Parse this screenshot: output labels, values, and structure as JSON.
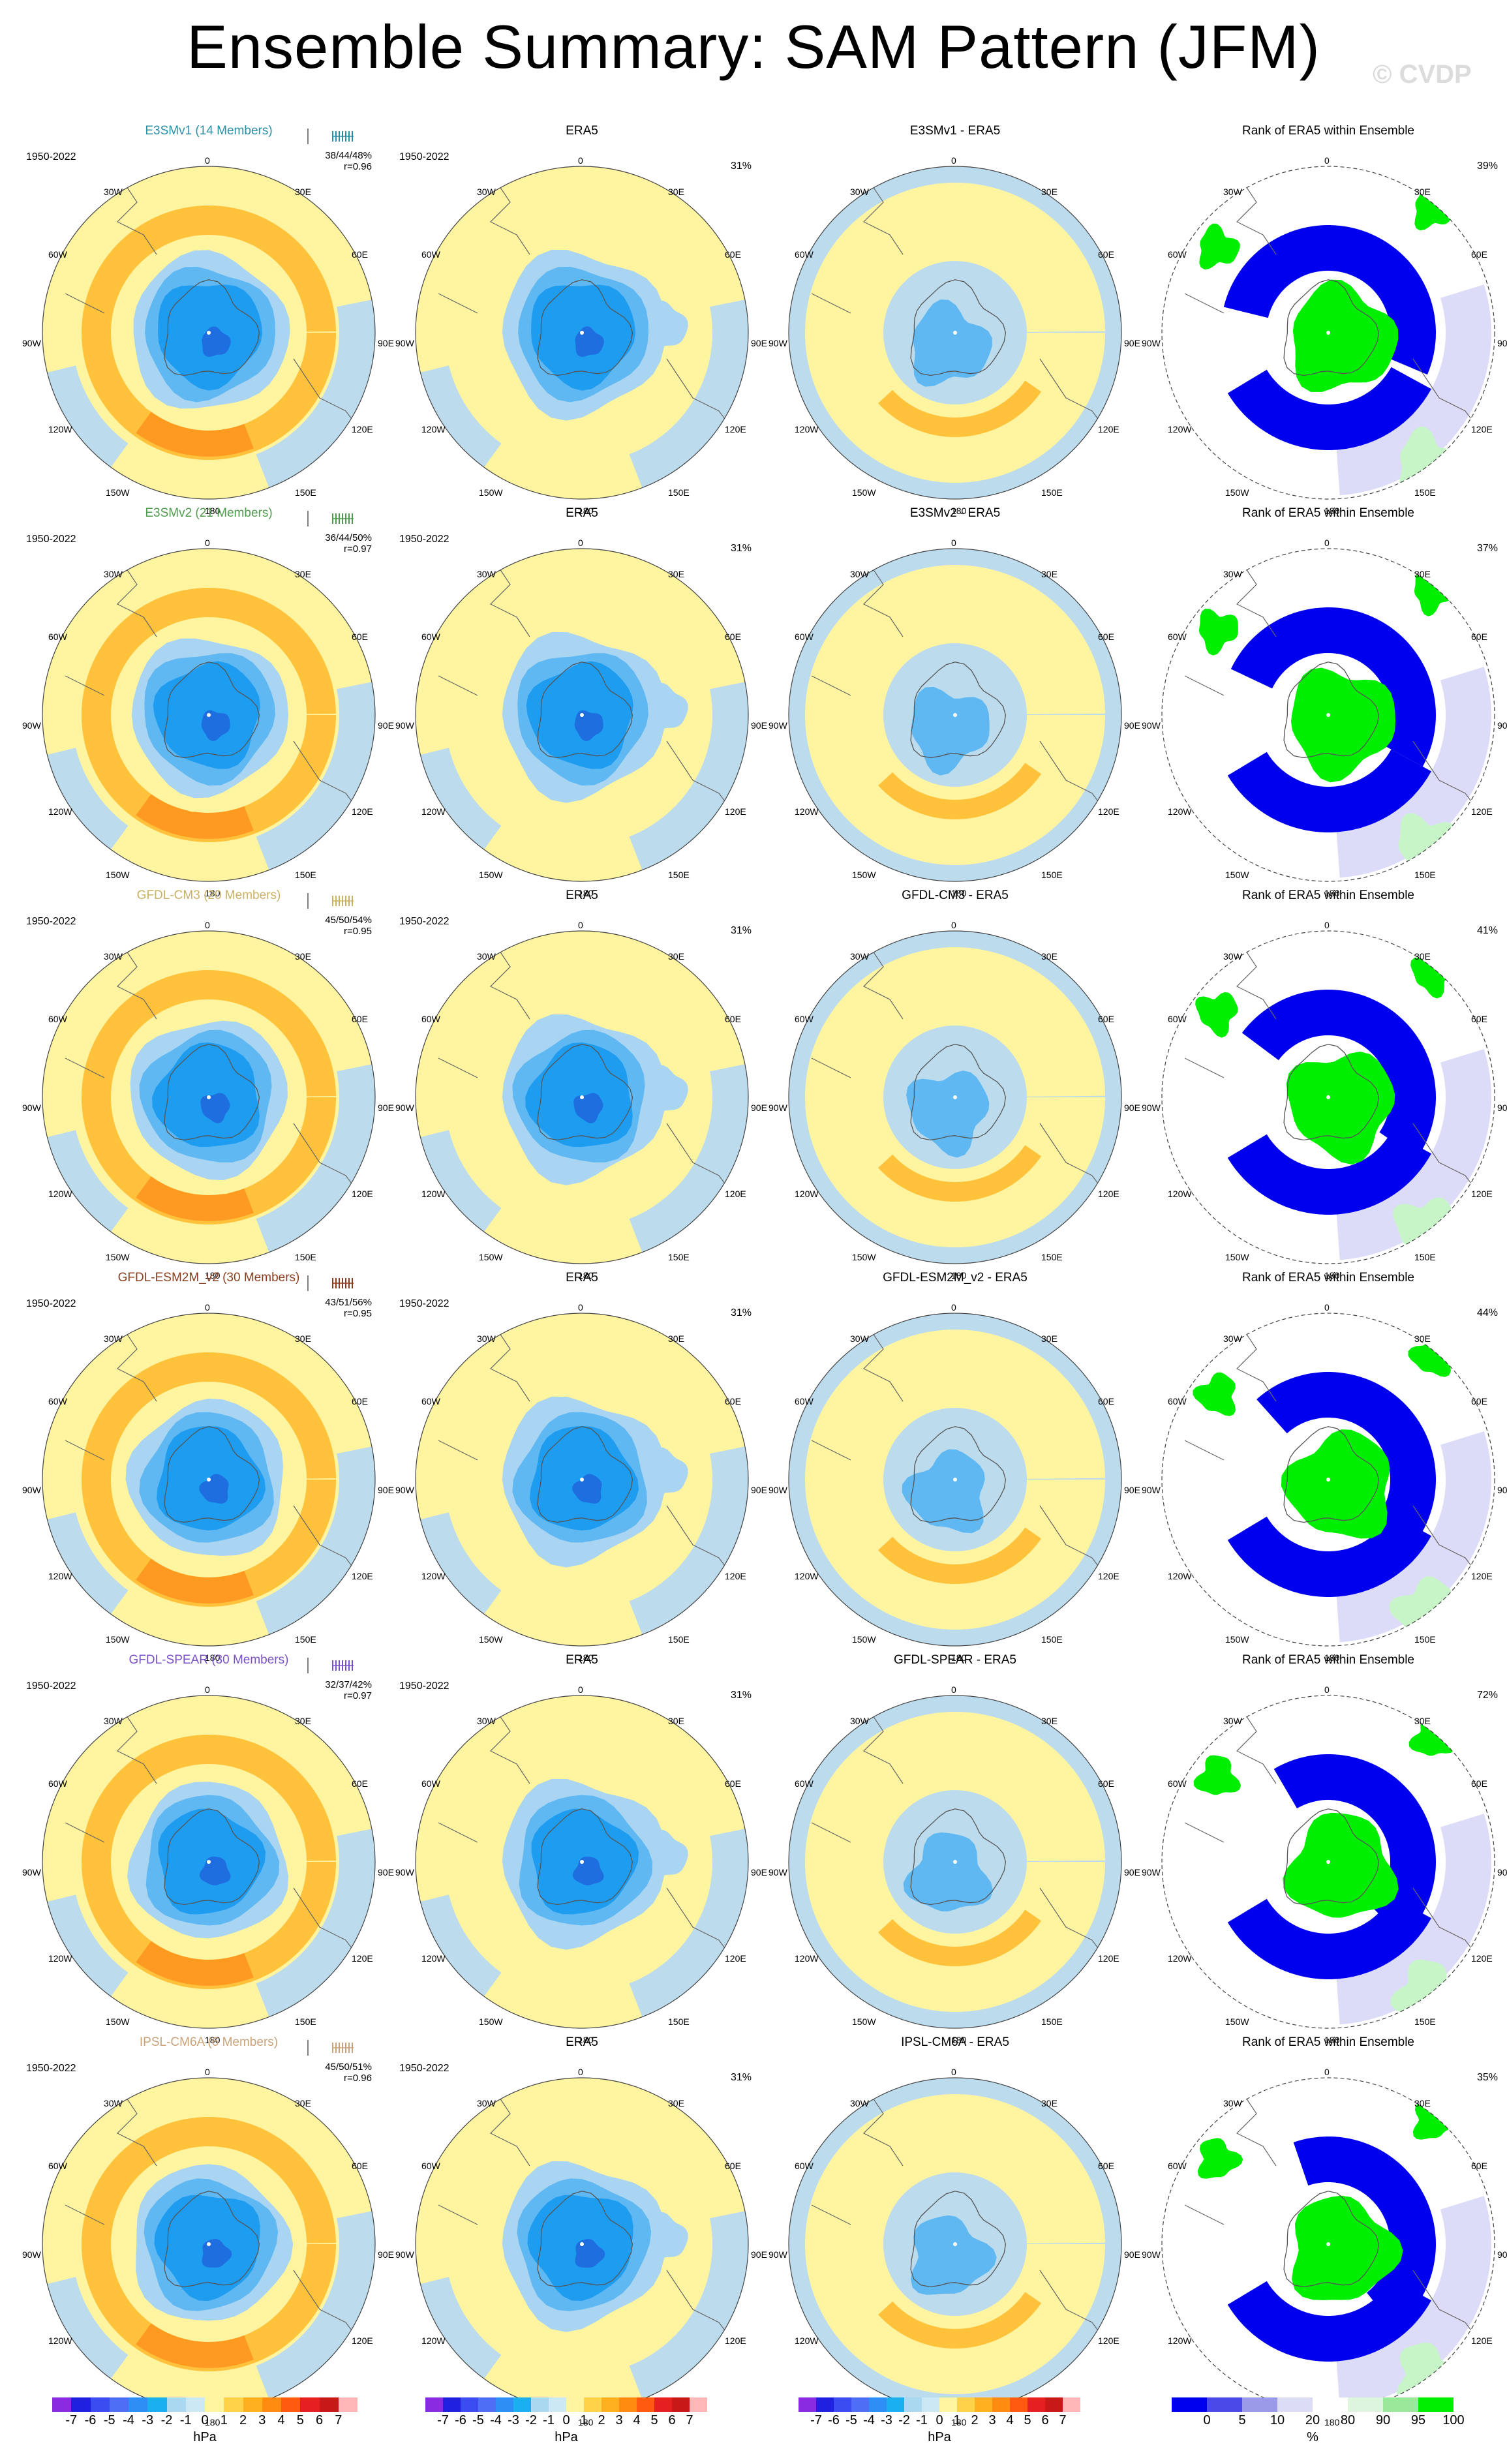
{
  "title": "Ensemble Summary: SAM Pattern (JFM)",
  "watermark": "© CVDP",
  "period": "1950-2022",
  "lon_labels": [
    "0",
    "30E",
    "60E",
    "90E",
    "120E",
    "150E",
    "180",
    "150W",
    "120W",
    "90W",
    "60W",
    "30W"
  ],
  "rows": [
    {
      "model": "E3SMv1 (14 Members)",
      "model_color": "#2a8fa6",
      "stats": "38/44/48%",
      "r": "r=0.96",
      "obs": "ERA5",
      "obs_pct": "31%",
      "diff": "E3SMv1 - ERA5",
      "rank": "Rank of ERA5 within Ensemble",
      "rank_pct": "39%"
    },
    {
      "model": "E3SMv2 (21 Members)",
      "model_color": "#4e9b4e",
      "stats": "36/44/50%",
      "r": "r=0.97",
      "obs": "ERA5",
      "obs_pct": "31%",
      "diff": "E3SMv2 - ERA5",
      "rank": "Rank of ERA5 within Ensemble",
      "rank_pct": "37%"
    },
    {
      "model": "GFDL-CM3 (20 Members)",
      "model_color": "#c9b164",
      "stats": "45/50/54%",
      "r": "r=0.95",
      "obs": "ERA5",
      "obs_pct": "31%",
      "diff": "GFDL-CM3 - ERA5",
      "rank": "Rank of ERA5 within Ensemble",
      "rank_pct": "41%"
    },
    {
      "model": "GFDL-ESM2M_v2 (30 Members)",
      "model_color": "#8a3d1e",
      "stats": "43/51/56%",
      "r": "r=0.95",
      "obs": "ERA5",
      "obs_pct": "31%",
      "diff": "GFDL-ESM2M_v2 - ERA5",
      "rank": "Rank of ERA5 within Ensemble",
      "rank_pct": "44%"
    },
    {
      "model": "GFDL-SPEAR (30 Members)",
      "model_color": "#7a50c8",
      "stats": "32/37/42%",
      "r": "r=0.97",
      "obs": "ERA5",
      "obs_pct": "31%",
      "diff": "GFDL-SPEAR - ERA5",
      "rank": "Rank of ERA5 within Ensemble",
      "rank_pct": "72%"
    },
    {
      "model": "IPSL-CM6A (6 Members)",
      "model_color": "#c9a37a",
      "stats": "45/50/51%",
      "r": "r=0.96",
      "obs": "ERA5",
      "obs_pct": "31%",
      "diff": "IPSL-CM6A - ERA5",
      "rank": "Rank of ERA5 within Ensemble",
      "rank_pct": "35%"
    }
  ],
  "colorbar_hpa": {
    "unit": "hPa",
    "ticks": [
      "-7",
      "-6",
      "-5",
      "-4",
      "-3",
      "-2",
      "-1",
      "0",
      "1",
      "2",
      "3",
      "4",
      "5",
      "6",
      "7"
    ],
    "colors": [
      "#8a2be2",
      "#2020e0",
      "#3b4df0",
      "#4d6ef5",
      "#2f8ef5",
      "#1ab0f0",
      "#a9d8f0",
      "#cde8f5",
      "#fff5a0",
      "#ffd24a",
      "#ffb020",
      "#ff8c10",
      "#ff5a10",
      "#e62020",
      "#c81818",
      "#ffb6b6"
    ]
  },
  "colorbar_rank": {
    "unit": "%",
    "ticks": [
      "0",
      "5",
      "10",
      "20",
      "80",
      "90",
      "95",
      "100"
    ],
    "colors": [
      "#0000ee",
      "#4a4ae8",
      "#9a9ae8",
      "#dcdcf5",
      "#ffffff",
      "#ddf5dd",
      "#9ae89a",
      "#00ee00"
    ]
  },
  "legend_colors": {
    "ocean_bg": "#bcdcee",
    "yellow": "#fff4a0",
    "orange": "#ffc23a",
    "orange_dark": "#ff9a20",
    "blue_1": "#a9d4f2",
    "blue_2": "#5fb8f2",
    "blue_3": "#1e9cf0",
    "blue_4": "#1e6ee0",
    "rank_blue": "#0000ee",
    "rank_green": "#00ee00",
    "rank_lightblue": "#dcdcf8",
    "rank_lightgreen": "#c8f5c8"
  }
}
